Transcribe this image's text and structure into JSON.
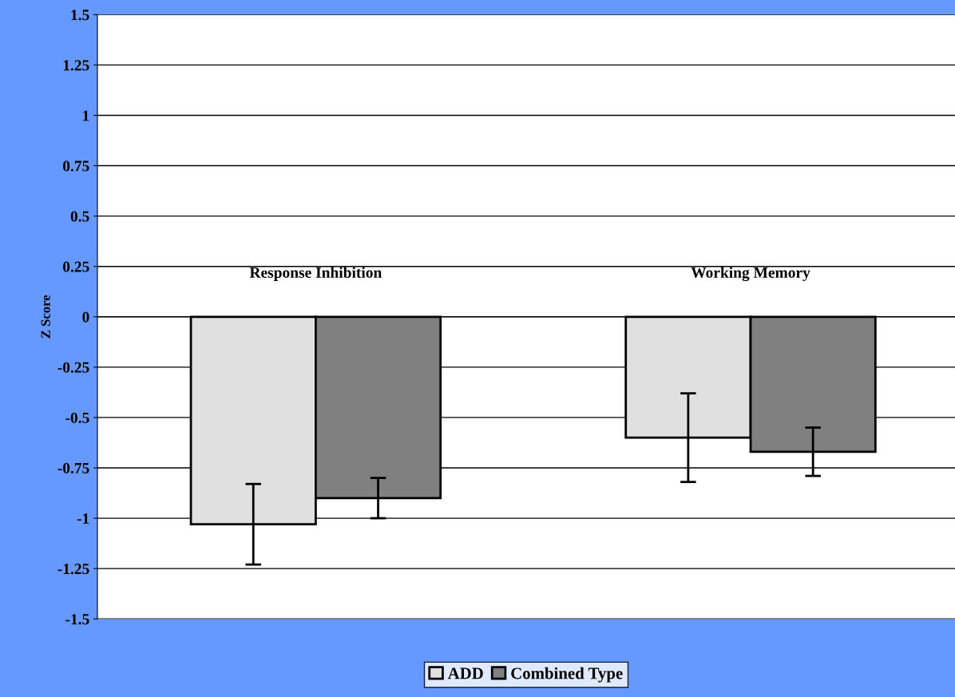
{
  "chart_data": {
    "type": "bar",
    "ylabel": "Z Score",
    "categories": [
      "Response Inhibition",
      "Working Memory"
    ],
    "series": [
      {
        "name": "ADD",
        "color": "#e0e0e0",
        "values": [
          -1.03,
          -0.6
        ],
        "errors": [
          0.2,
          0.22
        ]
      },
      {
        "name": "Combined Type",
        "color": "#808080",
        "values": [
          -0.9,
          -0.67
        ],
        "errors": [
          0.1,
          0.12
        ]
      }
    ],
    "ylim": [
      -1.5,
      1.5
    ],
    "yticks": [
      -1.5,
      -1.25,
      -1,
      -0.75,
      -0.5,
      -0.25,
      0,
      0.25,
      0.5,
      0.75,
      1,
      1.25,
      1.5
    ],
    "grid": "y",
    "legend": "bottom"
  }
}
